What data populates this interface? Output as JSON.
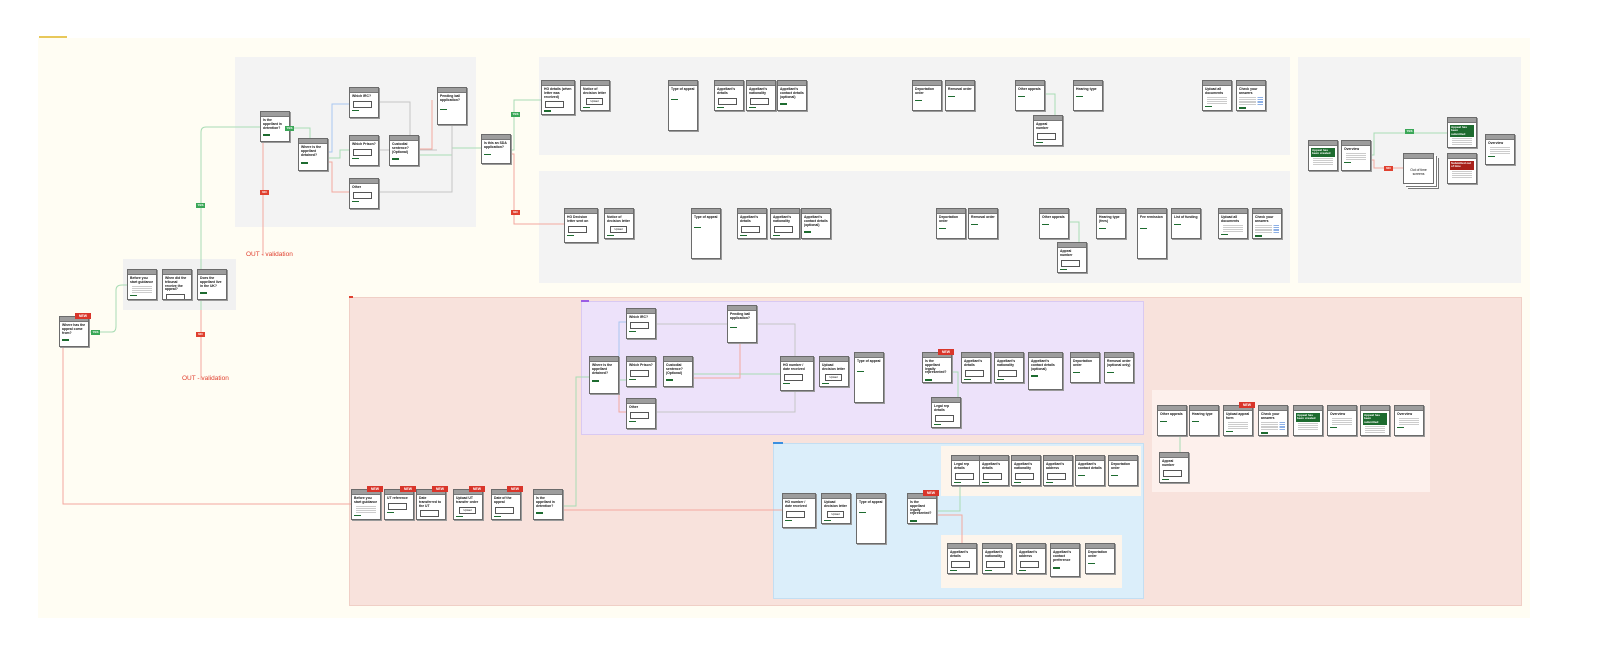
{
  "colors": {
    "canvas": "#fffdf3",
    "gray_region": "#f3f3f3",
    "pink_region": "#f8e2dc",
    "purple_region": "#ede2fa",
    "blue_region": "#dbeefa",
    "cream_region": "#fdf5ec",
    "yes": "#3aa757",
    "no": "#e0402f",
    "new_badge": "#d9352a",
    "banner_green": "#1d6b2f",
    "banner_red": "#a8201a"
  },
  "labels": {
    "yes": "YES",
    "no": "NO",
    "out_validation": "OUT - validation",
    "new": "NEW",
    "upload": "Upload"
  },
  "screens": [
    {
      "title": "Where has the appeal come from?",
      "type": "radio2",
      "badge": true
    },
    {
      "title": "Before you start guidance",
      "type": "text"
    },
    {
      "title": "When did the tribunal receive the appeal?",
      "type": "input"
    },
    {
      "title": "Does the appellant live in the UK?",
      "type": "radio2"
    },
    {
      "title": "Is the appellant in detention?",
      "type": "radio2"
    },
    {
      "title": "Where is the appellant detained?",
      "type": "radio3"
    },
    {
      "title": "Which IRC?",
      "type": "input"
    },
    {
      "title": "Which Prison?",
      "type": "input"
    },
    {
      "title": "Other",
      "type": "input"
    },
    {
      "title": "Custodial sentence? (Optional)",
      "type": "radio2"
    },
    {
      "title": "Pending bail application?",
      "type": "radio4"
    },
    {
      "title": "Is this an SDA application?",
      "type": "radio2"
    },
    {
      "title": "HO details (when letter was received)",
      "type": "input"
    },
    {
      "title": "Notice of decision letter",
      "type": "upload"
    },
    {
      "title": "Type of appeal",
      "type": "radio5"
    },
    {
      "title": "Appellant's details",
      "type": "input"
    },
    {
      "title": "Appellant's nationality",
      "type": "input"
    },
    {
      "title": "Appellant's contact details (optional)",
      "type": "radio2"
    },
    {
      "title": "Deportation order",
      "type": "radio2"
    },
    {
      "title": "Removal order",
      "type": "radio2"
    },
    {
      "title": "Other appeals",
      "type": "radio2"
    },
    {
      "title": "Appeal number",
      "type": "input"
    },
    {
      "title": "Hearing type",
      "type": "radio2"
    },
    {
      "title": "Upload all documents",
      "type": "text"
    },
    {
      "title": "Check your answers",
      "type": "table"
    },
    {
      "title": "HO Decision letter sent on",
      "type": "input"
    },
    {
      "title": "Notice of decision letter",
      "type": "upload"
    },
    {
      "title": "Type of appeal",
      "type": "radio5"
    },
    {
      "title": "Appellant's details",
      "type": "input"
    },
    {
      "title": "Appellant's nationality",
      "type": "input"
    },
    {
      "title": "Appellant's contact details (optional)",
      "type": "radio2"
    },
    {
      "title": "Deportation order",
      "type": "radio2"
    },
    {
      "title": "Removal order",
      "type": "radio2"
    },
    {
      "title": "Other appeals",
      "type": "radio2"
    },
    {
      "title": "Appeal number",
      "type": "input"
    },
    {
      "title": "Hearing type (fees)",
      "type": "radio2"
    },
    {
      "title": "Fee remission",
      "type": "radio6"
    },
    {
      "title": "List of funding",
      "type": "radio2"
    },
    {
      "title": "Upload all documents",
      "type": "text"
    },
    {
      "title": "Check your answers",
      "type": "table"
    },
    {
      "title": "Appeal has been created",
      "type": "green"
    },
    {
      "title": "Overview",
      "type": "text"
    },
    {
      "title": "Out of time screens",
      "type": "stack"
    },
    {
      "title": "Appeal has been submitted",
      "type": "green"
    },
    {
      "title": "Submitted out of time",
      "type": "red"
    },
    {
      "title": "Overview",
      "type": "text"
    },
    {
      "title": "Where is the appellant detained?",
      "type": "radio3"
    },
    {
      "title": "Which IRC?",
      "type": "input"
    },
    {
      "title": "Which Prison?",
      "type": "input"
    },
    {
      "title": "Other",
      "type": "input"
    },
    {
      "title": "Custodial sentence? (Optional)",
      "type": "radio2"
    },
    {
      "title": "Pending bail application?",
      "type": "radio4"
    },
    {
      "title": "HO number / date received",
      "type": "input"
    },
    {
      "title": "Upload decision letter",
      "type": "upload"
    },
    {
      "title": "Type of appeal",
      "type": "radio5"
    },
    {
      "title": "Is the appellant legally represented?",
      "type": "radio2",
      "badge": true
    },
    {
      "title": "Legal rep details",
      "type": "input"
    },
    {
      "title": "Appellant's details",
      "type": "input"
    },
    {
      "title": "Appellant's nationality",
      "type": "input"
    },
    {
      "title": "Appellant's contact details (optional)",
      "type": "radio2"
    },
    {
      "title": "Deportation order",
      "type": "radio2"
    },
    {
      "title": "Removal order (optional only)",
      "type": "radio2"
    },
    {
      "title": "HO number / date received",
      "type": "input"
    },
    {
      "title": "Upload decision letter",
      "type": "upload"
    },
    {
      "title": "Type of appeal",
      "type": "radio5"
    },
    {
      "title": "Is the appellant legally represented?",
      "type": "radio2",
      "badge": true
    },
    {
      "title": "Legal rep details",
      "type": "input"
    },
    {
      "title": "Appellant's details",
      "type": "input"
    },
    {
      "title": "Appellant's nationality",
      "type": "input"
    },
    {
      "title": "Appellant's address",
      "type": "input"
    },
    {
      "title": "Appellant's contact details",
      "type": "radio2"
    },
    {
      "title": "Deportation order",
      "type": "radio2"
    },
    {
      "title": "Appellant's details",
      "type": "input"
    },
    {
      "title": "Appellant's nationality",
      "type": "input"
    },
    {
      "title": "Appellant's address",
      "type": "input"
    },
    {
      "title": "Appellant's contact preference",
      "type": "radio3"
    },
    {
      "title": "Deportation order",
      "type": "radio2"
    },
    {
      "title": "Other appeals",
      "type": "radio2"
    },
    {
      "title": "Appeal number",
      "type": "input"
    },
    {
      "title": "Hearing type",
      "type": "radio2"
    },
    {
      "title": "Upload appeal form",
      "type": "text",
      "badge": true
    },
    {
      "title": "Check your answers",
      "type": "table"
    },
    {
      "title": "Appeal has been created",
      "type": "green"
    },
    {
      "title": "Overview",
      "type": "text"
    },
    {
      "title": "Appeal has been submitted",
      "type": "green"
    },
    {
      "title": "Overview",
      "type": "text"
    },
    {
      "title": "Before you start guidance",
      "type": "text",
      "badge": true
    },
    {
      "title": "UT reference",
      "type": "input",
      "badge": true
    },
    {
      "title": "Date transferred to the UT",
      "type": "input",
      "badge": true
    },
    {
      "title": "Upload UT transfer order",
      "type": "upload",
      "badge": true
    },
    {
      "title": "Date of the appeal",
      "type": "input",
      "badge": true
    },
    {
      "title": "Is the appellant in detention?",
      "type": "radio2"
    }
  ]
}
